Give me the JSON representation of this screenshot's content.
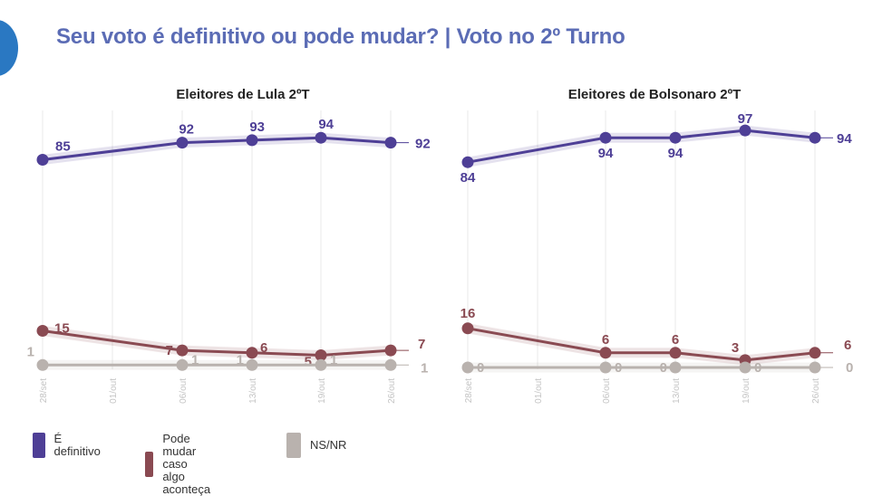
{
  "header": {
    "title": "Seu voto é definitivo ou pode mudar? | Voto no 2º Turno"
  },
  "colors": {
    "definitivo": "#4e3f96",
    "pode_mudar": "#8a4a52",
    "nsnr": "#b9b2ae",
    "title": "#5b6cb5"
  },
  "legend": [
    {
      "label": "É definitivo",
      "color": "#4e3f96"
    },
    {
      "label": "Pode mudar caso\nalgo aconteça",
      "color": "#8a4a52"
    },
    {
      "label": "NS/NR",
      "color": "#b9b2ae"
    }
  ],
  "chart_data": [
    {
      "type": "line",
      "title": "Eleitores de Lula 2ºT",
      "categories": [
        "28/set",
        "01/out",
        "06/out",
        "13/out",
        "19/out",
        "26/out"
      ],
      "ylim": [
        0,
        100
      ],
      "series": [
        {
          "name": "É definitivo",
          "color": "#4e3f96",
          "values": [
            85,
            null,
            92,
            93,
            94,
            92
          ]
        },
        {
          "name": "Pode mudar caso algo aconteça",
          "color": "#8a4a52",
          "values": [
            15,
            null,
            7,
            6,
            5,
            7
          ]
        },
        {
          "name": "NS/NR",
          "color": "#b9b2ae",
          "values": [
            1,
            null,
            1,
            1,
            1,
            1
          ]
        }
      ]
    },
    {
      "type": "line",
      "title": "Eleitores de Bolsonaro 2ºT",
      "categories": [
        "28/set",
        "01/out",
        "06/out",
        "13/out",
        "19/out",
        "26/out"
      ],
      "ylim": [
        0,
        100
      ],
      "series": [
        {
          "name": "É definitivo",
          "color": "#4e3f96",
          "values": [
            84,
            null,
            94,
            94,
            97,
            94
          ]
        },
        {
          "name": "Pode mudar caso algo aconteça",
          "color": "#8a4a52",
          "values": [
            16,
            null,
            6,
            6,
            3,
            6
          ]
        },
        {
          "name": "NS/NR",
          "color": "#b9b2ae",
          "values": [
            0,
            null,
            0,
            0,
            0,
            0
          ]
        }
      ]
    }
  ]
}
